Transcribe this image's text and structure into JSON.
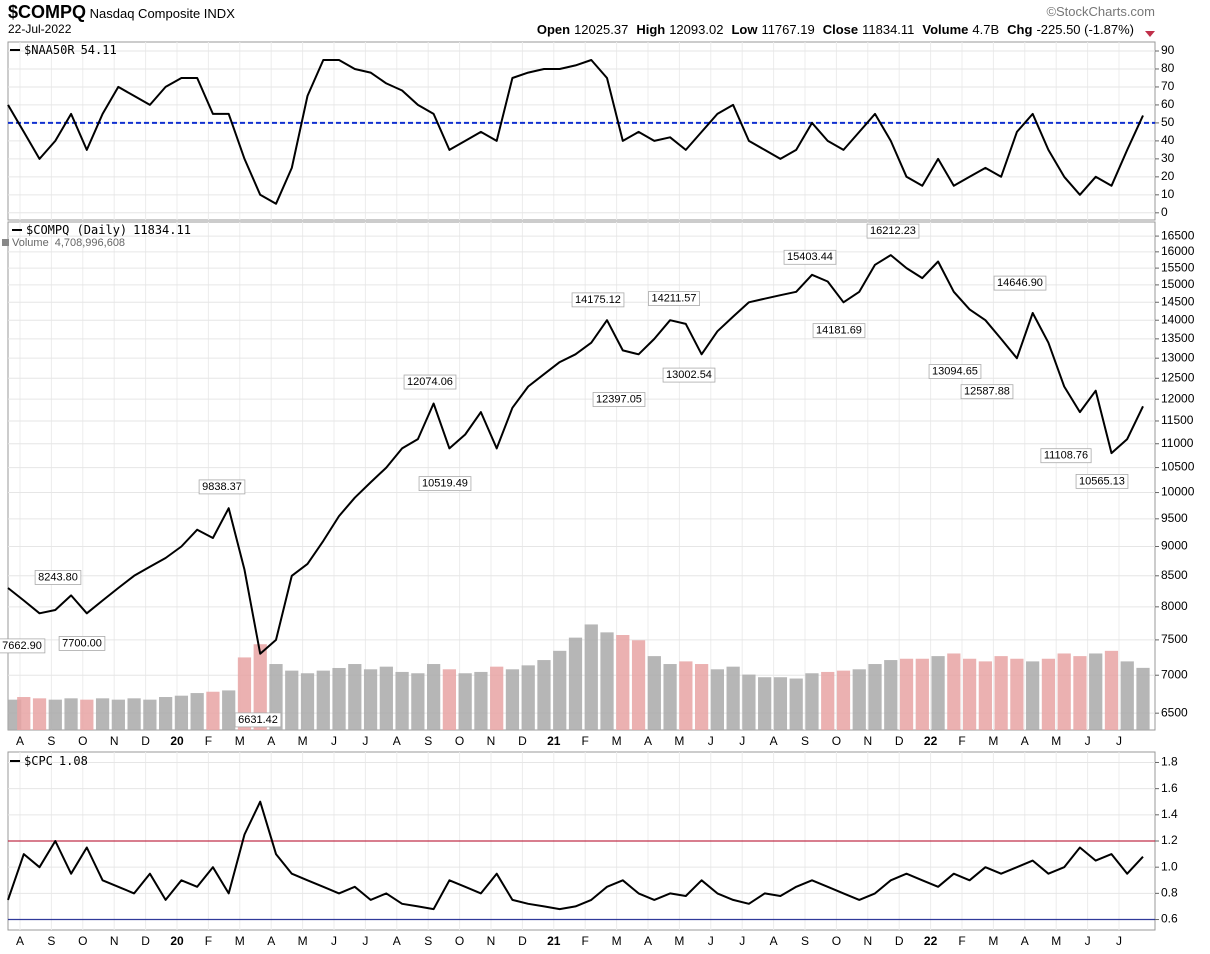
{
  "header": {
    "symbol": "$COMPQ",
    "name": "Nasdaq Composite INDX",
    "date": "22-Jul-2022",
    "source": "©StockCharts.com",
    "quote": [
      {
        "label": "Open",
        "text": "12025.37"
      },
      {
        "label": "High",
        "text": "12093.02"
      },
      {
        "label": "Low",
        "text": "11767.19"
      },
      {
        "label": "Close",
        "text": "11834.11"
      },
      {
        "label": "Volume",
        "text": "4.7B"
      },
      {
        "label": "Chg",
        "text": "-225.50 (-1.87%)"
      }
    ]
  },
  "chart_data": [
    {
      "type": "line",
      "ylim": [
        -4,
        95
      ],
      "yticks": [
        0,
        10,
        20,
        30,
        40,
        50,
        60,
        70,
        80,
        90
      ],
      "grid": true,
      "reference_lines": [
        {
          "value": 50,
          "color": "#1030d0",
          "style": "dashed"
        }
      ],
      "series": [
        {
          "name": "$NAA50R",
          "latest": 54.11,
          "color": "#000000",
          "values": [
            60,
            45,
            30,
            40,
            55,
            35,
            55,
            70,
            65,
            60,
            70,
            75,
            75,
            55,
            55,
            30,
            10,
            5,
            25,
            65,
            85,
            85,
            80,
            78,
            72,
            68,
            60,
            55,
            35,
            40,
            45,
            40,
            75,
            78,
            80,
            80,
            82,
            85,
            75,
            40,
            45,
            40,
            42,
            35,
            45,
            55,
            60,
            40,
            35,
            30,
            35,
            50,
            40,
            35,
            45,
            55,
            40,
            20,
            15,
            30,
            15,
            20,
            25,
            20,
            45,
            55,
            35,
            20,
            10,
            20,
            15,
            35,
            54.11
          ]
        }
      ]
    },
    {
      "type": "line",
      "log": true,
      "ylim": [
        6290,
        16960
      ],
      "yticks": [
        6500,
        7000,
        7500,
        8000,
        8500,
        9000,
        9500,
        10000,
        10500,
        11000,
        11500,
        12000,
        12500,
        13000,
        13500,
        14000,
        14500,
        15000,
        15500,
        16000,
        16500
      ],
      "grid": true,
      "y2lim": [
        0,
        38500000000
      ],
      "month_labels": [
        "A",
        "S",
        "O",
        "N",
        "D",
        "20",
        "F",
        "M",
        "A",
        "M",
        "J",
        "J",
        "A",
        "S",
        "O",
        "N",
        "D",
        "21",
        "F",
        "M",
        "A",
        "M",
        "J",
        "J",
        "A",
        "S",
        "O",
        "N",
        "D",
        "22",
        "F",
        "M",
        "A",
        "M",
        "J",
        "J"
      ],
      "series": [
        {
          "name": "$COMPQ (Daily)",
          "latest": 11834.11,
          "color": "#000000",
          "values": [
            8300,
            8100,
            7900,
            7950,
            8180,
            7900,
            8100,
            8300,
            8500,
            8650,
            8800,
            9000,
            9300,
            9150,
            9700,
            8600,
            7300,
            7500,
            8500,
            8700,
            9100,
            9550,
            9900,
            10200,
            10500,
            10900,
            11100,
            11900,
            10900,
            11200,
            11700,
            10900,
            11800,
            12300,
            12600,
            12900,
            13100,
            13400,
            14000,
            13200,
            13100,
            13500,
            14000,
            13900,
            13100,
            13700,
            14100,
            14500,
            14600,
            14700,
            14800,
            15300,
            15100,
            14500,
            14800,
            15600,
            15900,
            15500,
            15200,
            15700,
            14800,
            14300,
            14000,
            13500,
            13000,
            14200,
            13400,
            12300,
            11700,
            12200,
            10800,
            11100,
            11834.11
          ]
        },
        {
          "name": "Volume",
          "type": "bar",
          "axis": "y2",
          "latest": {
            "value": 4708996608,
            "label": "4,708,996,608"
          },
          "up_color": "#a9a9a9",
          "down_color": "#e7a3a3",
          "values": [
            2300000000,
            2500000000,
            2400000000,
            2300000000,
            2400000000,
            2300000000,
            2400000000,
            2300000000,
            2400000000,
            2300000000,
            2500000000,
            2600000000,
            2800000000,
            2900000000,
            3000000000,
            5500000000,
            6500000000,
            5000000000,
            4500000000,
            4300000000,
            4500000000,
            4700000000,
            5000000000,
            4600000000,
            4800000000,
            4400000000,
            4300000000,
            5000000000,
            4600000000,
            4300000000,
            4400000000,
            4800000000,
            4600000000,
            4900000000,
            5300000000,
            6000000000,
            7000000000,
            8000000000,
            7400000000,
            7200000000,
            6800000000,
            5600000000,
            5000000000,
            5200000000,
            5000000000,
            4600000000,
            4800000000,
            4200000000,
            4000000000,
            4000000000,
            3900000000,
            4300000000,
            4400000000,
            4500000000,
            4600000000,
            5000000000,
            5300000000,
            5400000000,
            5400000000,
            5600000000,
            5800000000,
            5400000000,
            5200000000,
            5600000000,
            5400000000,
            5200000000,
            5400000000,
            5800000000,
            5600000000,
            5800000000,
            6000000000,
            5200000000,
            4708996608
          ]
        }
      ],
      "annotations": [
        {
          "value": 8243.8,
          "label": "8243.80"
        },
        {
          "value": 7662.9,
          "label": "7662.90"
        },
        {
          "value": 7700,
          "label": "7700.00"
        },
        {
          "value": 9838.37,
          "label": "9838.37"
        },
        {
          "value": 6631.42,
          "label": "6631.42"
        },
        {
          "value": 12074.06,
          "label": "12074.06"
        },
        {
          "value": 10519.49,
          "label": "10519.49"
        },
        {
          "value": 14175.12,
          "label": "14175.12"
        },
        {
          "value": 12397.05,
          "label": "12397.05"
        },
        {
          "value": 14211.57,
          "label": "14211.57"
        },
        {
          "value": 13002.54,
          "label": "13002.54"
        },
        {
          "value": 15403.44,
          "label": "15403.44"
        },
        {
          "value": 14181.69,
          "label": "14181.69"
        },
        {
          "value": 16212.23,
          "label": "16212.23"
        },
        {
          "value": 13094.65,
          "label": "13094.65"
        },
        {
          "value": 14646.9,
          "label": "14646.90"
        },
        {
          "value": 12587.88,
          "label": "12587.88"
        },
        {
          "value": 11108.76,
          "label": "11108.76"
        },
        {
          "value": 10565.13,
          "label": "10565.13"
        }
      ]
    },
    {
      "type": "line",
      "ylim": [
        0.52,
        1.88
      ],
      "yticks": [
        0.6,
        0.8,
        {
          "value": 1,
          "label": "1.0"
        },
        1.2,
        1.4,
        1.6,
        1.8
      ],
      "grid": true,
      "reference_lines": [
        {
          "value": 1.2,
          "color": "#c0304a",
          "style": "solid"
        },
        {
          "value": 0.6,
          "color": "#303a9a",
          "style": "solid"
        }
      ],
      "month_labels": [
        "A",
        "S",
        "O",
        "N",
        "D",
        "20",
        "F",
        "M",
        "A",
        "M",
        "J",
        "J",
        "A",
        "S",
        "O",
        "N",
        "D",
        "21",
        "F",
        "M",
        "A",
        "M",
        "J",
        "J",
        "A",
        "S",
        "O",
        "N",
        "D",
        "22",
        "F",
        "M",
        "A",
        "M",
        "J",
        "J"
      ],
      "series": [
        {
          "name": "$CPC",
          "latest": 1.08,
          "color": "#000000",
          "values": [
            0.75,
            1.1,
            1.0,
            1.2,
            0.95,
            1.15,
            0.9,
            0.85,
            0.8,
            0.95,
            0.75,
            0.9,
            0.85,
            1.0,
            0.8,
            1.25,
            1.5,
            1.1,
            0.95,
            0.9,
            0.85,
            0.8,
            0.85,
            0.75,
            0.8,
            0.72,
            0.7,
            0.68,
            0.9,
            0.85,
            0.8,
            0.95,
            0.75,
            0.72,
            0.7,
            0.68,
            0.7,
            0.75,
            0.85,
            0.9,
            0.8,
            0.75,
            0.8,
            0.78,
            0.9,
            0.8,
            0.75,
            0.72,
            0.8,
            0.78,
            0.85,
            0.9,
            0.85,
            0.8,
            0.75,
            0.8,
            0.9,
            0.95,
            0.9,
            0.85,
            0.95,
            0.9,
            1.0,
            0.95,
            1.0,
            1.05,
            0.95,
            1.0,
            1.15,
            1.05,
            1.1,
            0.95,
            1.08
          ]
        }
      ]
    }
  ]
}
